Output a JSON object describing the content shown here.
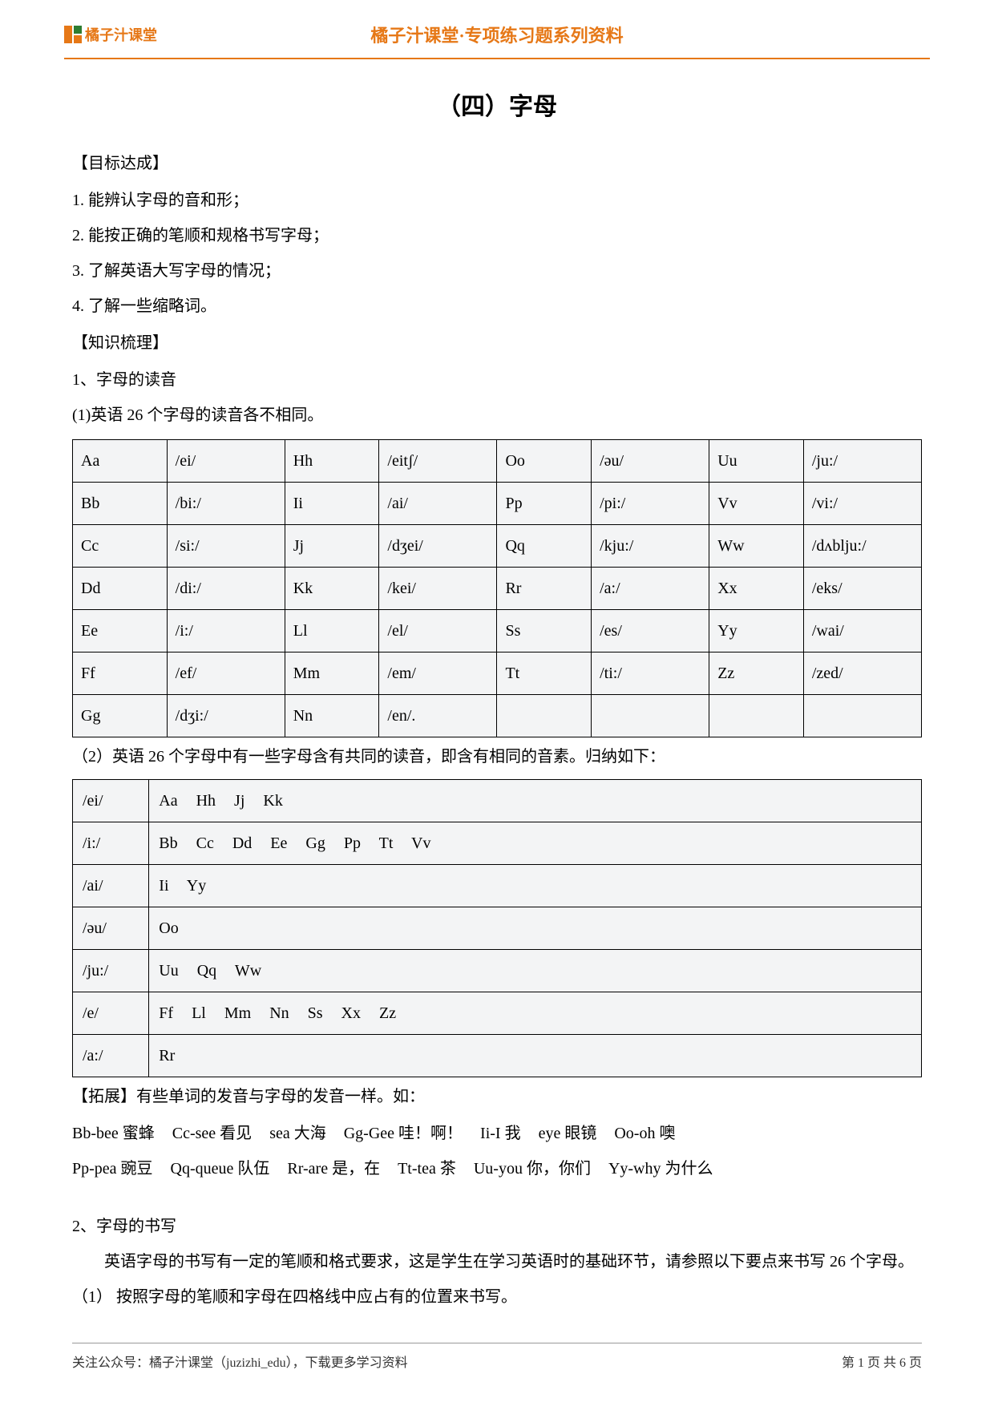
{
  "header": {
    "logo_text": "橘子汁课堂",
    "center": "橘子汁课堂·专项练习题系列资料",
    "rule_color": "#e67817"
  },
  "title": "（四）字母",
  "goals": {
    "heading": "【目标达成】",
    "items": [
      "1. 能辨认字母的音和形；",
      "2. 能按正确的笔顺和规格书写字母；",
      "3. 了解英语大写字母的情况；",
      "4. 了解一些缩略词。"
    ]
  },
  "knowledge": {
    "heading": "【知识梳理】",
    "sub1": "1、字母的读音",
    "sub1_note": "(1)英语 26 个字母的读音各不相同。"
  },
  "alpha_table": {
    "columns": [
      "letter",
      "sound",
      "letter",
      "sound",
      "letter",
      "sound",
      "letter",
      "sound"
    ],
    "rows": [
      [
        "Aa",
        "/ei/",
        "Hh",
        "/eitʃ/",
        "Oo",
        "/əu/",
        "Uu",
        "/ju:/"
      ],
      [
        "Bb",
        "/bi:/",
        "Ii",
        "/ai/",
        "Pp",
        "/pi:/",
        "Vv",
        "/vi:/"
      ],
      [
        "Cc",
        "/si:/",
        "Jj",
        "/dʒei/",
        "Qq",
        "/kju:/",
        "Ww",
        "/dʌblju:/"
      ],
      [
        "Dd",
        "/di:/",
        "Kk",
        "/kei/",
        "Rr",
        "/a:/",
        "Xx",
        "/eks/"
      ],
      [
        "Ee",
        "/i:/",
        "Ll",
        "/el/",
        "Ss",
        "/es/",
        "Yy",
        "/wai/"
      ],
      [
        "Ff",
        "/ef/",
        "Mm",
        "/em/",
        "Tt",
        "/ti:/",
        "Zz",
        "/zed/"
      ],
      [
        "Gg",
        "/dʒi:/",
        "Nn",
        "/en/.",
        "",
        "",
        "",
        ""
      ]
    ],
    "cell_bg": "#f3f4f5",
    "border_color": "#000000"
  },
  "note2": "（2）英语 26 个字母中有一些字母含有共同的读音，即含有相同的音素。归纳如下：",
  "phoneme_table": {
    "rows": [
      [
        "/ei/",
        "Aa   Hh   Jj   Kk"
      ],
      [
        "/i:/",
        "Bb   Cc   Dd   Ee   Gg   Pp   Tt   Vv"
      ],
      [
        "/ai/",
        "Ii   Yy"
      ],
      [
        "/əu/",
        "Oo"
      ],
      [
        "/ju:/",
        "Uu   Qq   Ww"
      ],
      [
        "/e/",
        "Ff   Ll   Mm   Nn   Ss   Xx   Zz"
      ],
      [
        "/a:/",
        "Rr"
      ]
    ],
    "cell_bg": "#f3f4f5",
    "border_color": "#000000"
  },
  "extension": {
    "heading": "【拓展】有些单词的发音与字母的发音一样。如：",
    "line1": [
      "Bb-bee 蜜蜂",
      "Cc-see 看见",
      "sea 大海",
      "Gg-Gee 哇！啊！",
      "Ii-I 我",
      "eye 眼镜",
      "Oo-oh 噢"
    ],
    "line2": [
      "Pp-pea 豌豆",
      "Qq-queue 队伍",
      "Rr-are 是，在",
      "Tt-tea 茶",
      "Uu-you 你，你们",
      "Yy-why 为什么"
    ]
  },
  "writing": {
    "heading": "2、字母的书写",
    "para": "英语字母的书写有一定的笔顺和格式要求，这是学生在学习英语时的基础环节，请参照以下要点来书写 26 个字母。",
    "item1": "（1）  按照字母的笔顺和字母在四格线中应占有的位置来书写。"
  },
  "footer": {
    "left": "关注公众号：橘子汁课堂（juzizhi_edu），下载更多学习资料",
    "right": "第 1 页 共 6 页"
  }
}
